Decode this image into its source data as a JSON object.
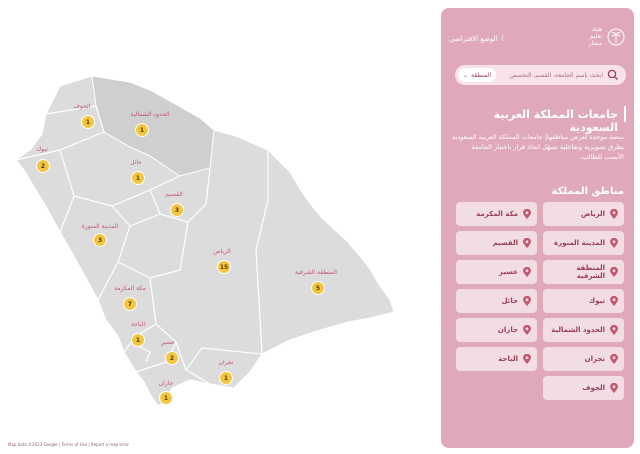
{
  "header": {
    "logo_text_1": "هيئة",
    "logo_text_2": "تعليم",
    "logo_text_3": "مسار",
    "dark_mode_label": "الوضع الافتراضي"
  },
  "search": {
    "placeholder": "ابحث باسم الجامعة، القسم، التخصص",
    "region_label": "المنطقة"
  },
  "intro": {
    "title": "جامعات المملكة العربية السعودية",
    "description": "منصة موحدة لعرض مناطقها| جامعات المملكة العربية السعودية بطرق تصويرية وتفاعلية تسهّل اتخاذ قرار باختيار الجامعة الأنسب للطالب."
  },
  "regions_section": {
    "title": "مناطق المملكة",
    "items": [
      {
        "label": "الرياض"
      },
      {
        "label": "مكة المكرمة"
      },
      {
        "label": "المدينة المنورة"
      },
      {
        "label": "القصيم"
      },
      {
        "label": "المنطقة الشرقية"
      },
      {
        "label": "عسير"
      },
      {
        "label": "تبوك"
      },
      {
        "label": "حائل"
      },
      {
        "label": "الحدود الشمالية"
      },
      {
        "label": "جازان"
      },
      {
        "label": "نجران"
      },
      {
        "label": "الباحة"
      },
      {
        "label": "الجوف"
      }
    ]
  },
  "map": {
    "attribution": "Map data ©2023 Google | Terms of Use | Report a map error",
    "colors": {
      "land": "#dcdcdc",
      "highlight": "#cfcfcf",
      "border": "#ffffff",
      "marker": "#f3c641",
      "label": "#c0596f",
      "sea": "#ffffff"
    },
    "markers": [
      {
        "label": "الجوف",
        "count": "1"
      },
      {
        "label": "الحدود الشمالية",
        "count": "1"
      },
      {
        "label": "تبوك",
        "count": "2"
      },
      {
        "label": "حائل",
        "count": "1"
      },
      {
        "label": "القصيم",
        "count": "3"
      },
      {
        "label": "المدينة المنورة",
        "count": "3"
      },
      {
        "label": "الرياض",
        "count": "15"
      },
      {
        "label": "المنطقة الشرقية",
        "count": "5"
      },
      {
        "label": "مكة المكرمة",
        "count": "7"
      },
      {
        "label": "الباحة",
        "count": "1"
      },
      {
        "label": "عسير",
        "count": "2"
      },
      {
        "label": "نجران",
        "count": "1"
      },
      {
        "label": "جازان",
        "count": "1"
      }
    ]
  }
}
